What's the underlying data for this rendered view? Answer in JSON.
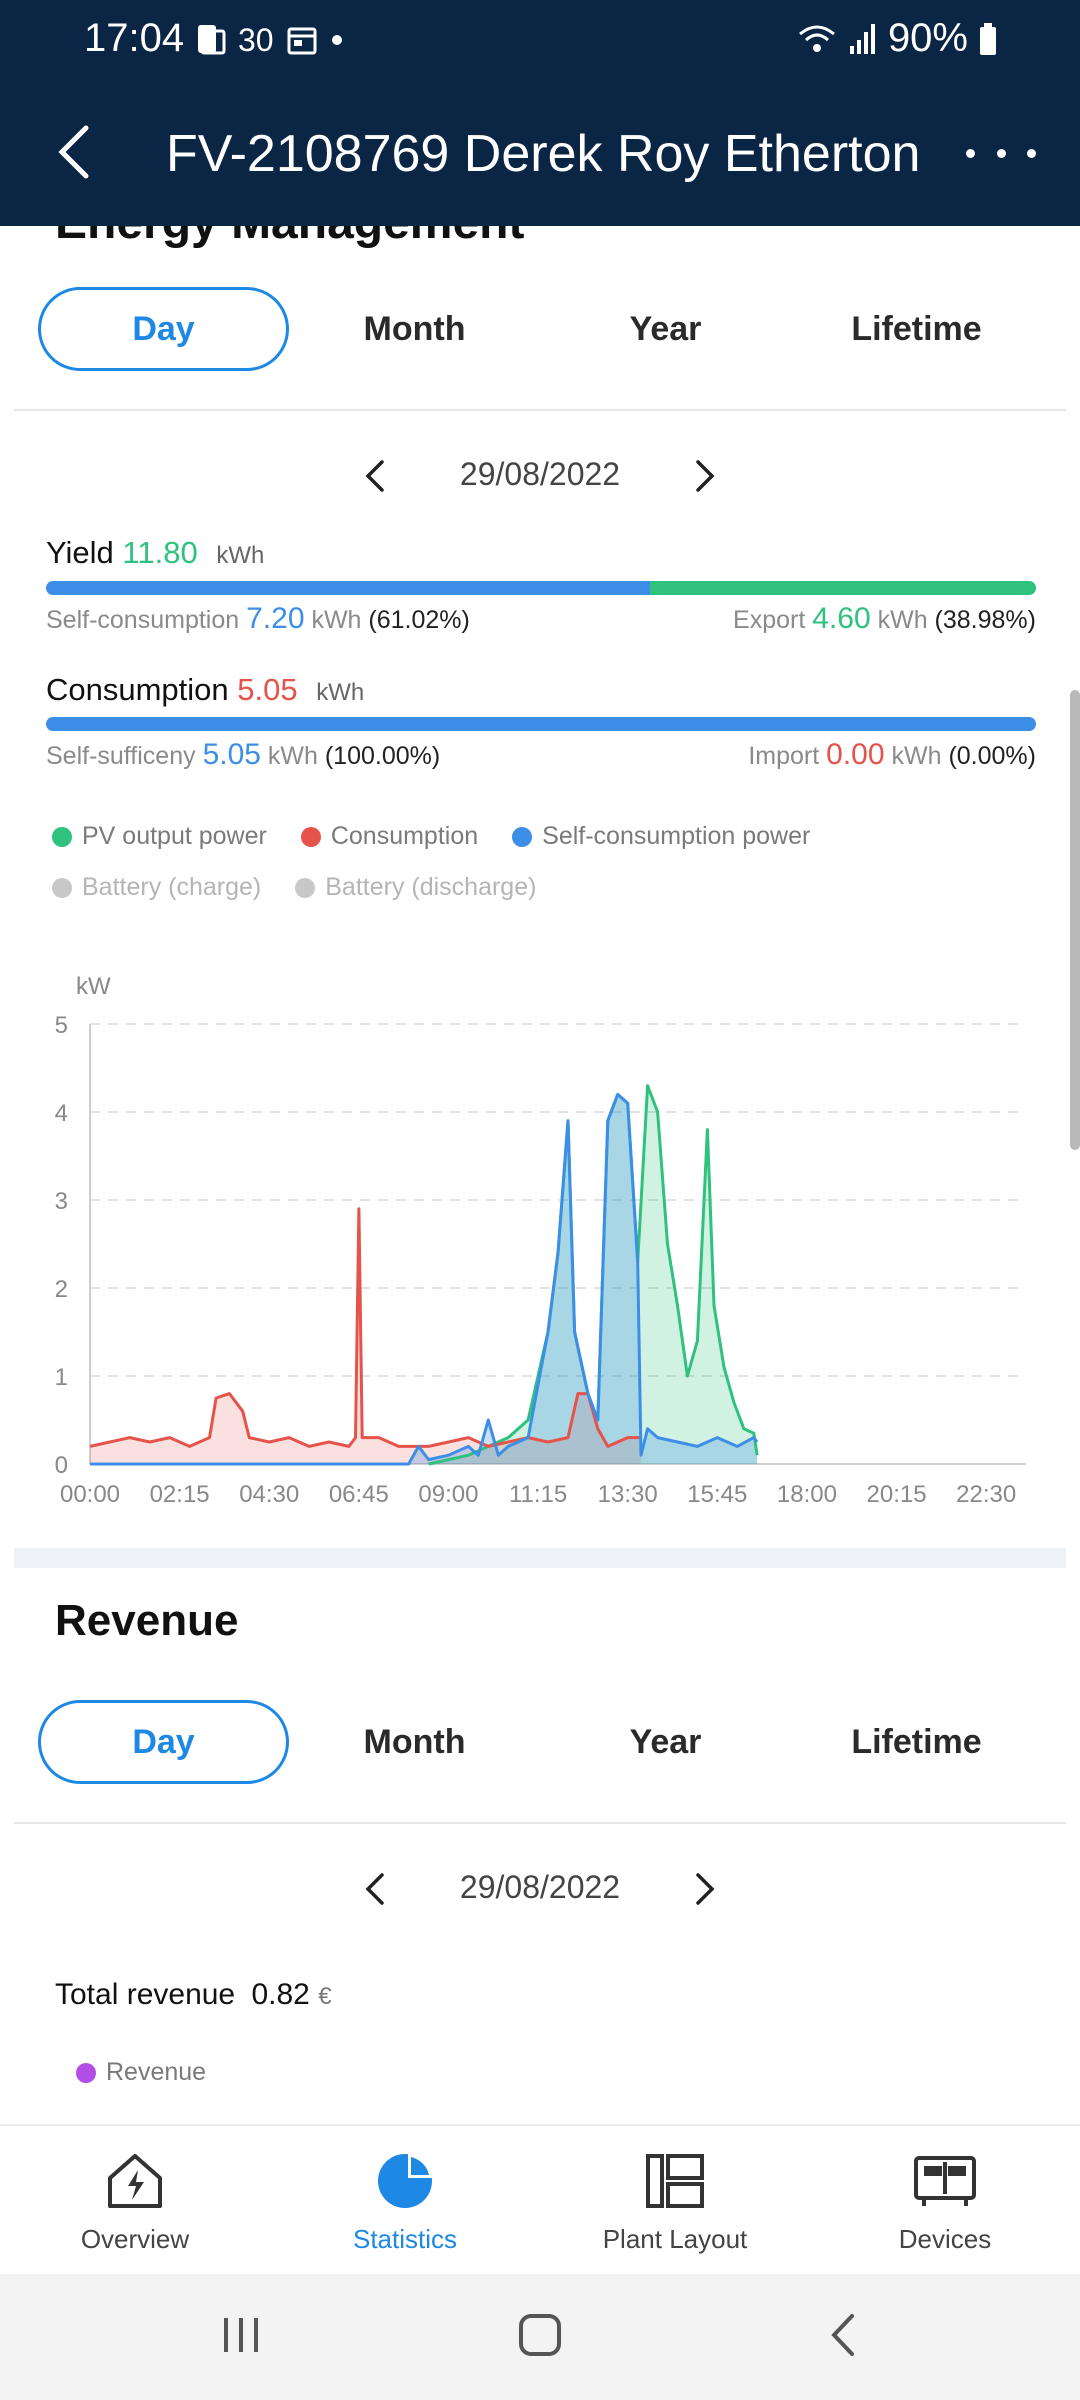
{
  "status_bar": {
    "time": "17:04",
    "temp": "30",
    "battery": "90%"
  },
  "header": {
    "title": "FV-2108769 Derek Roy Etherton"
  },
  "energy": {
    "section_title": "Energy Management",
    "tabs": [
      "Day",
      "Month",
      "Year",
      "Lifetime"
    ],
    "active_tab": "Day",
    "date": "29/08/2022",
    "yield": {
      "label": "Yield",
      "value": "11.80",
      "unit": "kWh",
      "self_label": "Self-consumption",
      "self_value": "7.20",
      "self_unit": "kWh",
      "self_pct": "(61.02%)",
      "export_label": "Export",
      "export_value": "4.60",
      "export_unit": "kWh",
      "export_pct": "(38.98%)",
      "self_fraction": 0.6102
    },
    "consumption": {
      "label": "Consumption",
      "value": "5.05",
      "unit": "kWh",
      "suff_label": "Self-sufficeny",
      "suff_value": "5.05",
      "suff_unit": "kWh",
      "suff_pct": "(100.00%)",
      "import_label": "Import",
      "import_value": "0.00",
      "import_unit": "kWh",
      "import_pct": "(0.00%)",
      "self_fraction": 1.0
    },
    "legend": [
      {
        "label": "PV output power",
        "color": "#2ec27e"
      },
      {
        "label": "Consumption",
        "color": "#e5534b"
      },
      {
        "label": "Self-consumption power",
        "color": "#3d8ee6"
      }
    ],
    "legend_inactive": [
      {
        "label": "Battery (charge)",
        "color": "#c8c8c8"
      },
      {
        "label": "Battery (discharge)",
        "color": "#c8c8c8"
      }
    ]
  },
  "chart_data": {
    "type": "area",
    "ylabel": "kW",
    "ylim": [
      0,
      5
    ],
    "yticks": [
      "0",
      "1",
      "2",
      "3",
      "4",
      "5"
    ],
    "xticks": [
      "00:00",
      "02:15",
      "04:30",
      "06:45",
      "09:00",
      "11:15",
      "13:30",
      "15:45",
      "18:00",
      "20:15",
      "22:30"
    ],
    "grid": true,
    "series": [
      {
        "name": "PV output power",
        "color": "#2ec27e",
        "points": [
          [
            "08:30",
            0
          ],
          [
            "09:00",
            0.05
          ],
          [
            "09:30",
            0.1
          ],
          [
            "10:00",
            0.2
          ],
          [
            "10:30",
            0.3
          ],
          [
            "11:00",
            0.5
          ],
          [
            "11:30",
            1.5
          ],
          [
            "11:45",
            2.4
          ],
          [
            "12:00",
            3.9
          ],
          [
            "12:10",
            1.5
          ],
          [
            "12:30",
            0.8
          ],
          [
            "12:45",
            0.5
          ],
          [
            "13:00",
            3.9
          ],
          [
            "13:15",
            4.2
          ],
          [
            "13:30",
            4.1
          ],
          [
            "13:45",
            2.3
          ],
          [
            "14:00",
            4.3
          ],
          [
            "14:15",
            4.0
          ],
          [
            "14:30",
            2.5
          ],
          [
            "14:45",
            1.8
          ],
          [
            "15:00",
            1.0
          ],
          [
            "15:15",
            1.4
          ],
          [
            "15:30",
            3.8
          ],
          [
            "15:40",
            1.8
          ],
          [
            "15:55",
            1.1
          ],
          [
            "16:10",
            0.7
          ],
          [
            "16:25",
            0.4
          ],
          [
            "16:40",
            0.35
          ],
          [
            "16:45",
            0.1
          ]
        ]
      },
      {
        "name": "Consumption",
        "color": "#e5534b",
        "points": [
          [
            "00:00",
            0.2
          ],
          [
            "00:30",
            0.25
          ],
          [
            "01:00",
            0.3
          ],
          [
            "01:30",
            0.25
          ],
          [
            "02:00",
            0.3
          ],
          [
            "02:30",
            0.2
          ],
          [
            "03:00",
            0.3
          ],
          [
            "03:10",
            0.75
          ],
          [
            "03:30",
            0.8
          ],
          [
            "03:50",
            0.6
          ],
          [
            "04:00",
            0.3
          ],
          [
            "04:30",
            0.25
          ],
          [
            "05:00",
            0.3
          ],
          [
            "05:30",
            0.2
          ],
          [
            "06:00",
            0.25
          ],
          [
            "06:30",
            0.2
          ],
          [
            "06:40",
            0.3
          ],
          [
            "06:45",
            2.9
          ],
          [
            "06:50",
            0.3
          ],
          [
            "07:15",
            0.3
          ],
          [
            "07:45",
            0.2
          ],
          [
            "08:30",
            0.2
          ],
          [
            "09:00",
            0.25
          ],
          [
            "09:30",
            0.3
          ],
          [
            "10:00",
            0.2
          ],
          [
            "10:30",
            0.25
          ],
          [
            "11:00",
            0.3
          ],
          [
            "11:30",
            0.25
          ],
          [
            "12:00",
            0.3
          ],
          [
            "12:15",
            0.8
          ],
          [
            "12:30",
            0.8
          ],
          [
            "12:45",
            0.4
          ],
          [
            "13:00",
            0.2
          ],
          [
            "13:30",
            0.3
          ],
          [
            "13:50",
            0.3
          ]
        ]
      },
      {
        "name": "Self-consumption power",
        "color": "#3d8ee6",
        "points": [
          [
            "00:00",
            0
          ],
          [
            "08:00",
            0
          ],
          [
            "08:15",
            0.2
          ],
          [
            "08:30",
            0.05
          ],
          [
            "09:00",
            0.1
          ],
          [
            "09:30",
            0.2
          ],
          [
            "09:45",
            0.1
          ],
          [
            "10:00",
            0.5
          ],
          [
            "10:15",
            0.1
          ],
          [
            "10:30",
            0.2
          ],
          [
            "11:00",
            0.3
          ],
          [
            "11:30",
            1.5
          ],
          [
            "11:45",
            2.4
          ],
          [
            "12:00",
            3.9
          ],
          [
            "12:10",
            1.5
          ],
          [
            "12:30",
            0.8
          ],
          [
            "12:45",
            0.5
          ],
          [
            "13:00",
            3.9
          ],
          [
            "13:15",
            4.2
          ],
          [
            "13:30",
            4.1
          ],
          [
            "13:45",
            2.3
          ],
          [
            "13:50",
            0.1
          ],
          [
            "14:00",
            0.4
          ],
          [
            "14:15",
            0.3
          ],
          [
            "14:45",
            0.25
          ],
          [
            "15:15",
            0.2
          ],
          [
            "15:45",
            0.3
          ],
          [
            "16:15",
            0.2
          ],
          [
            "16:40",
            0.3
          ],
          [
            "16:45",
            0.25
          ]
        ]
      }
    ]
  },
  "revenue": {
    "section_title": "Revenue",
    "tabs": [
      "Day",
      "Month",
      "Year",
      "Lifetime"
    ],
    "active_tab": "Day",
    "date": "29/08/2022",
    "total_label": "Total revenue",
    "total_value": "0.82",
    "currency": "€",
    "legend_label": "Revenue",
    "legend_color": "#b24de6"
  },
  "bottom_nav": {
    "items": [
      {
        "label": "Overview",
        "icon": "lightning-house-icon"
      },
      {
        "label": "Statistics",
        "icon": "pie-chart-icon"
      },
      {
        "label": "Plant Layout",
        "icon": "layout-icon"
      },
      {
        "label": "Devices",
        "icon": "device-icon"
      }
    ],
    "active": "Statistics"
  }
}
